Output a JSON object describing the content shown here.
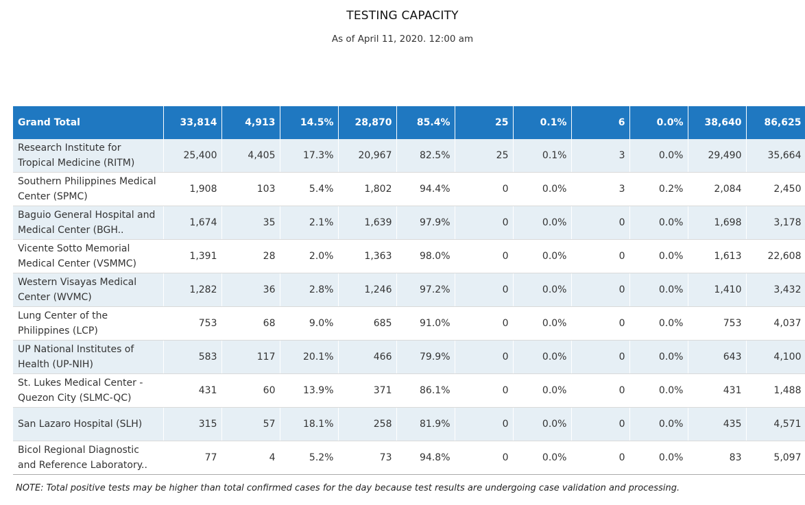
{
  "header": {
    "title": "TESTING CAPACITY",
    "subtitle": "As of April 11, 2020. 12:00 am"
  },
  "table": {
    "total": {
      "label": "Grand Total",
      "cells": [
        "33,814",
        "4,913",
        "14.5%",
        "28,870",
        "85.4%",
        "25",
        "0.1%",
        "6",
        "0.0%",
        "38,640",
        "86,625"
      ]
    },
    "rows": [
      {
        "name": "Research Institute for Tropical Medicine (RITM)",
        "cells": [
          "25,400",
          "4,405",
          "17.3%",
          "20,967",
          "82.5%",
          "25",
          "0.1%",
          "3",
          "0.0%",
          "29,490",
          "35,664"
        ]
      },
      {
        "name": "Southern Philippines Medical Center (SPMC)",
        "cells": [
          "1,908",
          "103",
          "5.4%",
          "1,802",
          "94.4%",
          "0",
          "0.0%",
          "3",
          "0.2%",
          "2,084",
          "2,450"
        ]
      },
      {
        "name": "Baguio General Hospital and Medical Center (BGH..",
        "cells": [
          "1,674",
          "35",
          "2.1%",
          "1,639",
          "97.9%",
          "0",
          "0.0%",
          "0",
          "0.0%",
          "1,698",
          "3,178"
        ]
      },
      {
        "name": "Vicente Sotto Memorial Medical Center (VSMMC)",
        "cells": [
          "1,391",
          "28",
          "2.0%",
          "1,363",
          "98.0%",
          "0",
          "0.0%",
          "0",
          "0.0%",
          "1,613",
          "22,608"
        ]
      },
      {
        "name": "Western Visayas Medical Center (WVMC)",
        "cells": [
          "1,282",
          "36",
          "2.8%",
          "1,246",
          "97.2%",
          "0",
          "0.0%",
          "0",
          "0.0%",
          "1,410",
          "3,432"
        ]
      },
      {
        "name": "Lung Center of the Philippines (LCP)",
        "cells": [
          "753",
          "68",
          "9.0%",
          "685",
          "91.0%",
          "0",
          "0.0%",
          "0",
          "0.0%",
          "753",
          "4,037"
        ]
      },
      {
        "name": "UP National Institutes of Health (UP-NIH)",
        "cells": [
          "583",
          "117",
          "20.1%",
          "466",
          "79.9%",
          "0",
          "0.0%",
          "0",
          "0.0%",
          "643",
          "4,100"
        ]
      },
      {
        "name": "St. Lukes Medical Center - Quezon City (SLMC-QC)",
        "cells": [
          "431",
          "60",
          "13.9%",
          "371",
          "86.1%",
          "0",
          "0.0%",
          "0",
          "0.0%",
          "431",
          "1,488"
        ]
      },
      {
        "name": "San Lazaro Hospital (SLH)",
        "cells": [
          "315",
          "57",
          "18.1%",
          "258",
          "81.9%",
          "0",
          "0.0%",
          "0",
          "0.0%",
          "435",
          "4,571"
        ]
      },
      {
        "name": "Bicol Regional Diagnostic and Reference Laboratory..",
        "cells": [
          "77",
          "4",
          "5.2%",
          "73",
          "94.8%",
          "0",
          "0.0%",
          "0",
          "0.0%",
          "83",
          "5,097"
        ]
      }
    ]
  },
  "footer": {
    "note": "NOTE: Total positive tests may be higher than total confirmed cases for the day because test results are undergoing case validation and processing."
  },
  "colors": {
    "header_bg": "#1f78c1",
    "band_bg": "#e6eff5"
  }
}
